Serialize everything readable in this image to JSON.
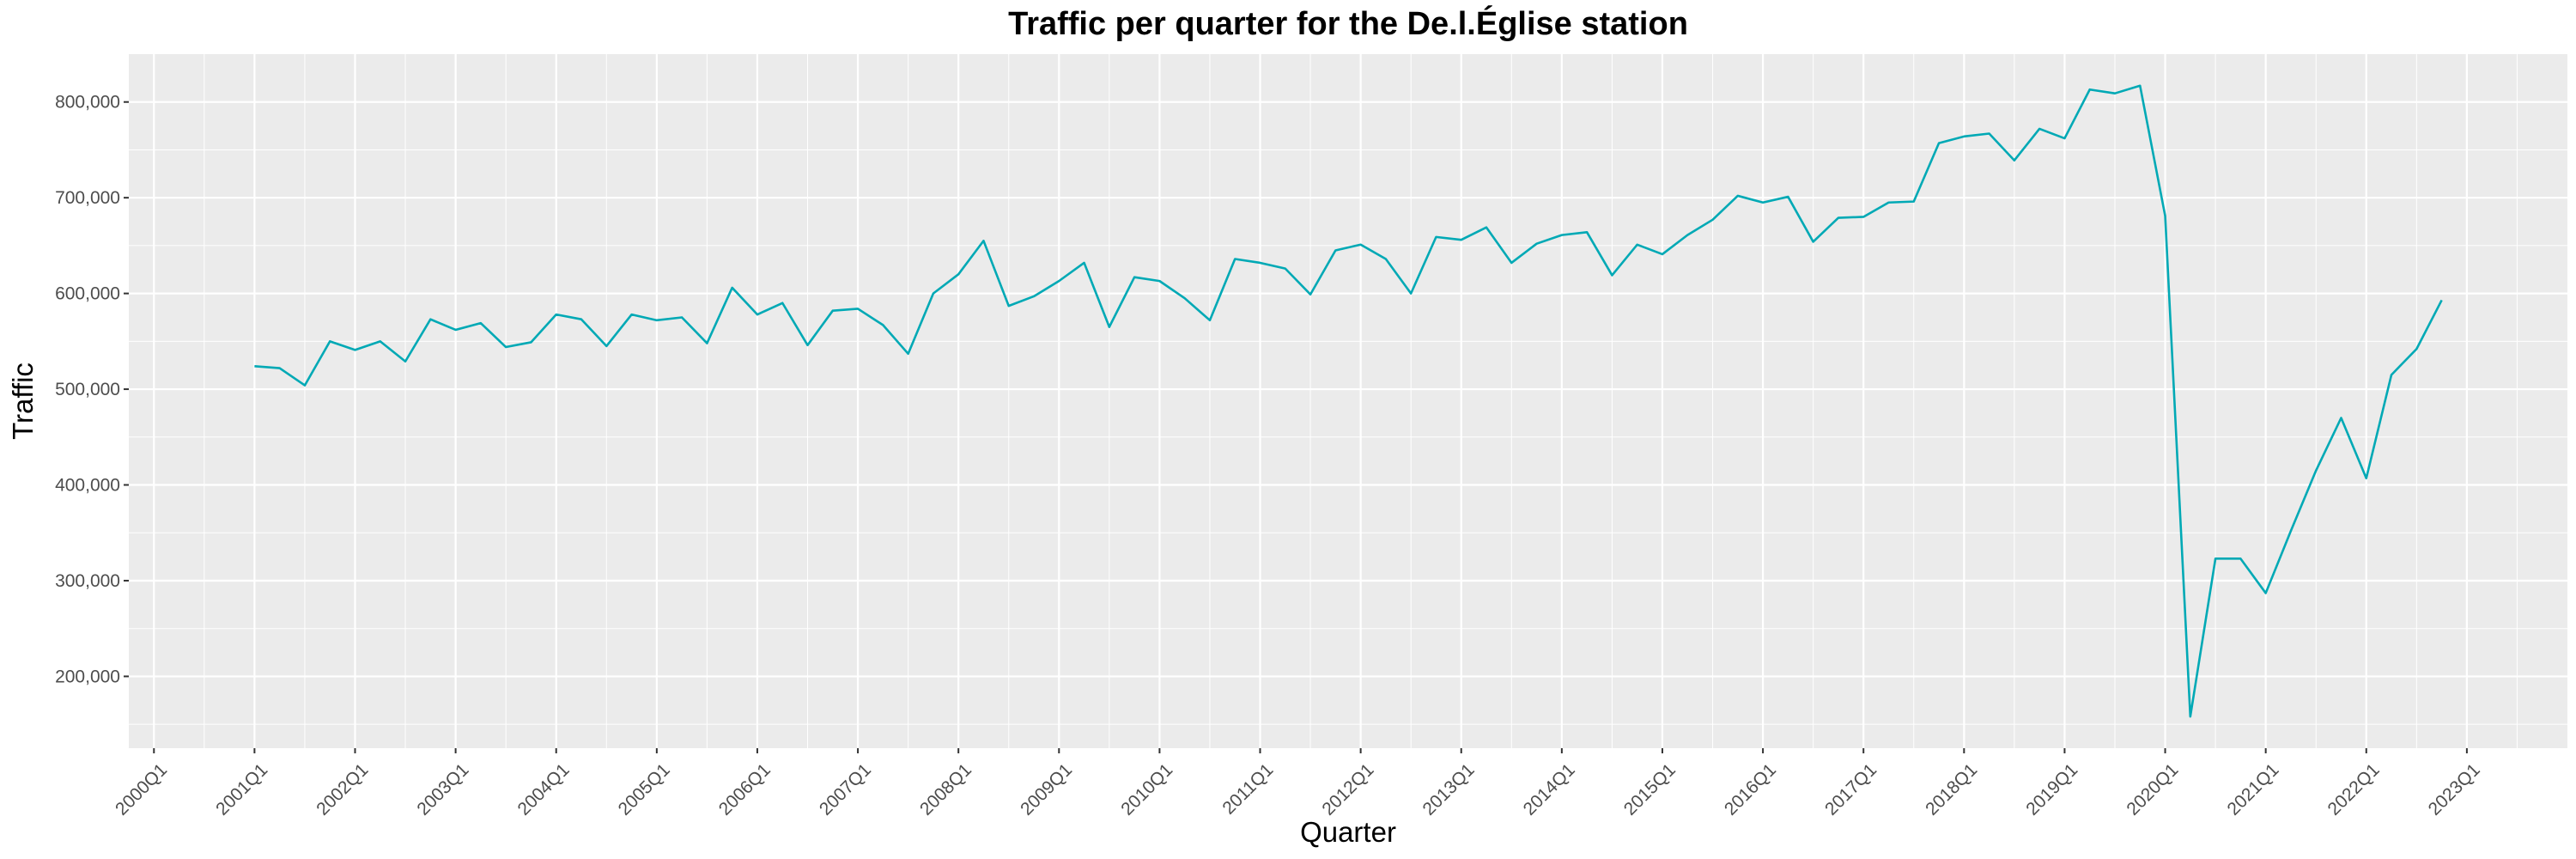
{
  "chart_data": {
    "type": "line",
    "title": "Traffic per quarter for the De.l.Église station",
    "xlabel": "Quarter",
    "ylabel": "Traffic",
    "x_tick_labels": [
      "2000Q1",
      "2001Q1",
      "2002Q1",
      "2003Q1",
      "2004Q1",
      "2005Q1",
      "2006Q1",
      "2007Q1",
      "2008Q1",
      "2009Q1",
      "2010Q1",
      "2011Q1",
      "2012Q1",
      "2013Q1",
      "2014Q1",
      "2015Q1",
      "2016Q1",
      "2017Q1",
      "2018Q1",
      "2019Q1",
      "2020Q1",
      "2021Q1",
      "2022Q1",
      "2023Q1"
    ],
    "y_tick_values": [
      200000,
      300000,
      400000,
      500000,
      600000,
      700000,
      800000
    ],
    "y_tick_labels": [
      "200,000",
      "300,000",
      "400,000",
      "500,000",
      "600,000",
      "700,000",
      "800,000"
    ],
    "xlim": [
      "1999Q4",
      "2024Q1"
    ],
    "ylim": [
      125000,
      850000
    ],
    "grid": true,
    "line_color": "#00A9B5",
    "panel_background": "#EBEBEB",
    "series": [
      {
        "x": [
          "2001Q1",
          "2001Q2",
          "2001Q3",
          "2001Q4",
          "2002Q1",
          "2002Q2",
          "2002Q3",
          "2002Q4",
          "2003Q1",
          "2003Q2",
          "2003Q3",
          "2003Q4",
          "2004Q1",
          "2004Q2",
          "2004Q3",
          "2004Q4",
          "2005Q1",
          "2005Q2",
          "2005Q3",
          "2005Q4",
          "2006Q1",
          "2006Q2",
          "2006Q3",
          "2006Q4",
          "2007Q1",
          "2007Q2",
          "2007Q3",
          "2007Q4",
          "2008Q1",
          "2008Q2",
          "2008Q3",
          "2008Q4",
          "2009Q1",
          "2009Q2",
          "2009Q3",
          "2009Q4",
          "2010Q1",
          "2010Q2",
          "2010Q3",
          "2010Q4",
          "2011Q1",
          "2011Q2",
          "2011Q3",
          "2011Q4",
          "2012Q1",
          "2012Q2",
          "2012Q3",
          "2012Q4",
          "2013Q1",
          "2013Q2",
          "2013Q3",
          "2013Q4",
          "2014Q1",
          "2014Q2",
          "2014Q3",
          "2014Q4",
          "2015Q1",
          "2015Q2",
          "2015Q3",
          "2015Q4",
          "2016Q1",
          "2016Q2",
          "2016Q3",
          "2016Q4",
          "2017Q1",
          "2017Q2",
          "2017Q3",
          "2017Q4",
          "2018Q1",
          "2018Q2",
          "2018Q3",
          "2018Q4",
          "2019Q1",
          "2019Q2",
          "2019Q3",
          "2019Q4",
          "2020Q1",
          "2020Q2",
          "2020Q3",
          "2020Q4",
          "2021Q1",
          "2021Q2",
          "2021Q3",
          "2021Q4",
          "2022Q1",
          "2022Q2",
          "2022Q3",
          "2022Q4"
        ],
        "values": [
          524000,
          522000,
          504000,
          550000,
          541000,
          550000,
          529000,
          573000,
          562000,
          569000,
          544000,
          549000,
          578000,
          573000,
          545000,
          578000,
          572000,
          575000,
          548000,
          606000,
          578000,
          590000,
          546000,
          582000,
          584000,
          567000,
          537000,
          600000,
          620000,
          655000,
          587000,
          597000,
          613000,
          632000,
          565000,
          617000,
          613000,
          595000,
          572000,
          636000,
          632000,
          626000,
          599000,
          645000,
          651000,
          636000,
          600000,
          659000,
          656000,
          669000,
          632000,
          652000,
          661000,
          664000,
          619000,
          651000,
          641000,
          661000,
          677000,
          702000,
          695000,
          701000,
          654000,
          679000,
          680000,
          695000,
          696000,
          757000,
          764000,
          767000,
          739000,
          772000,
          762000,
          813000,
          809000,
          817000,
          681000,
          158000,
          323000,
          323000,
          287000,
          352000,
          415000,
          470000,
          407000,
          515000,
          542000,
          593000
        ]
      }
    ]
  }
}
